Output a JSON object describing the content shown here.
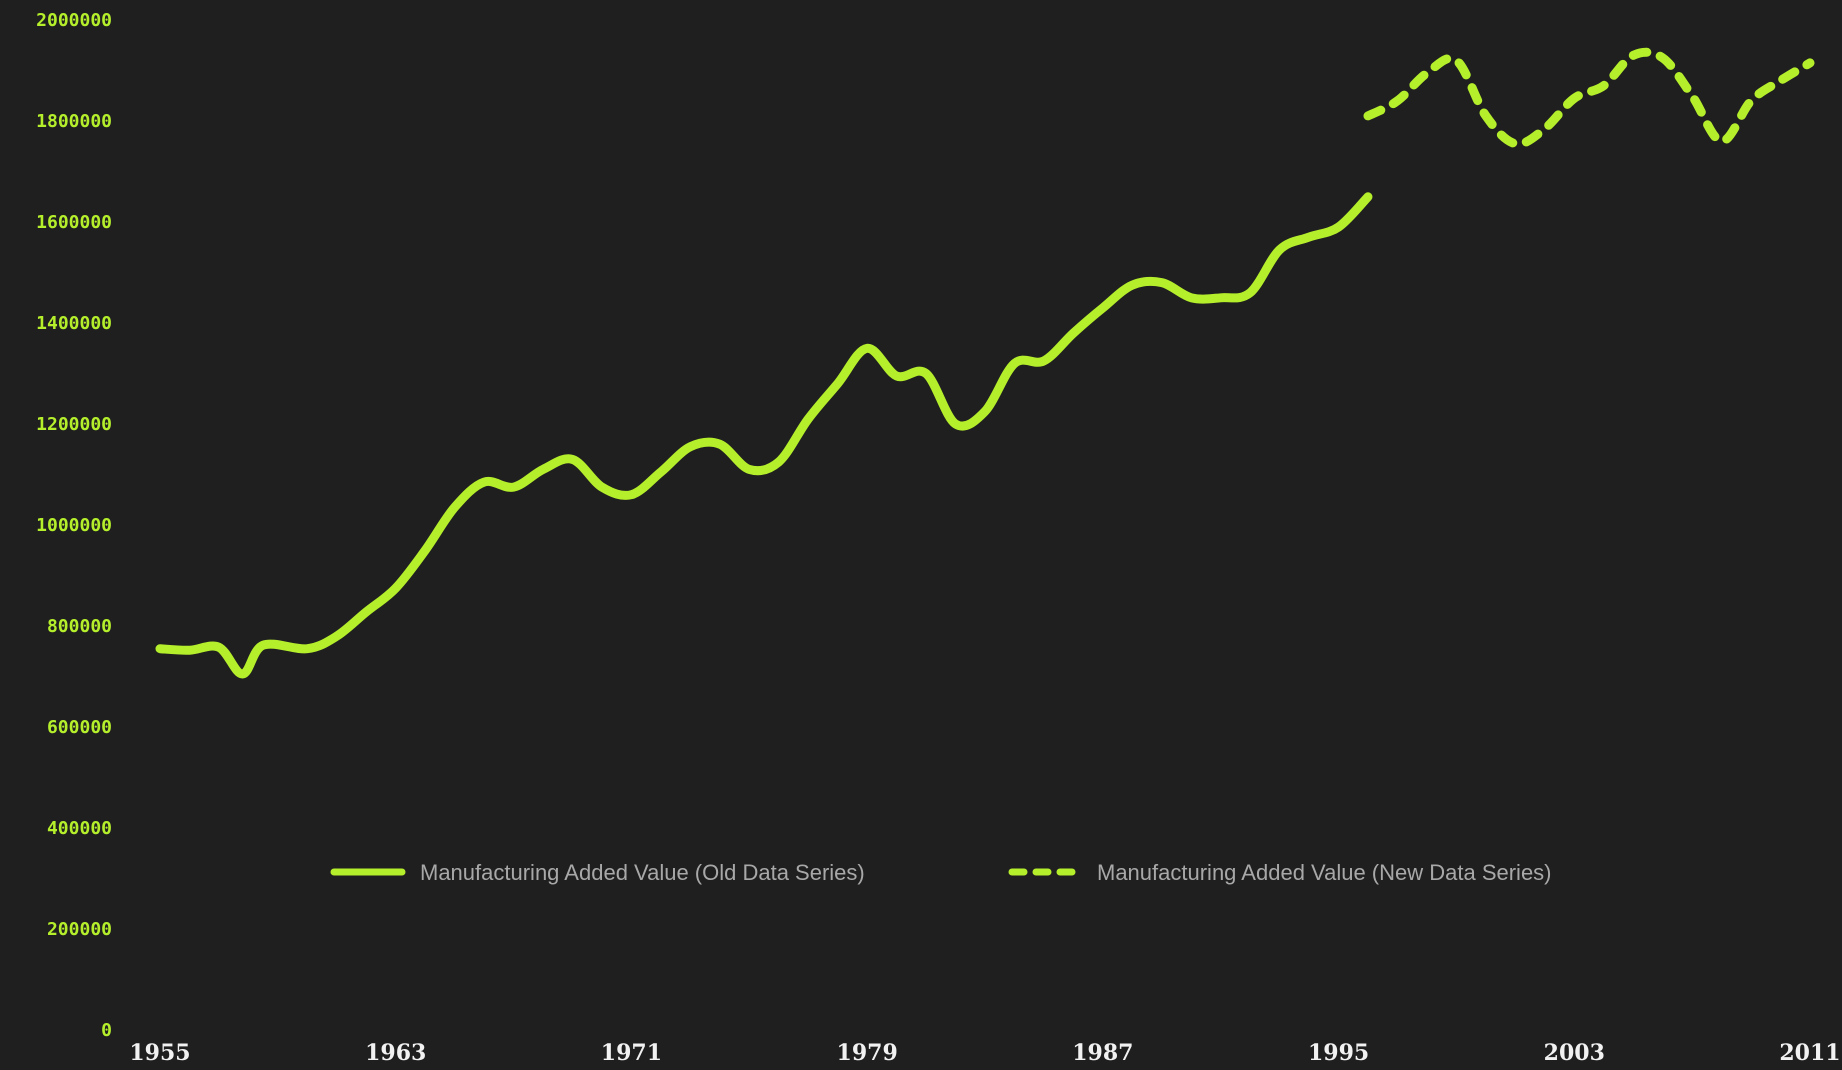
{
  "chart_data": {
    "type": "line",
    "title": "",
    "xlabel": "",
    "ylabel": "",
    "xlim": [
      1955,
      2011
    ],
    "ylim": [
      0,
      2000000
    ],
    "grid": false,
    "legend_position": "bottom-center",
    "colors": {
      "background": "#1f1f1f",
      "series": "#b5ef2c",
      "ytick": "#b5ef2c",
      "xtick": "#f2f2f2",
      "legend_text": "#a8a8a8"
    },
    "x_ticks": [
      "1955",
      "1963",
      "1971",
      "1979",
      "1987",
      "1995",
      "2003",
      "2011"
    ],
    "y_ticks": [
      "0",
      "200000",
      "400000",
      "600000",
      "800000",
      "1000000",
      "1200000",
      "1400000",
      "1600000",
      "1800000",
      "2000000"
    ],
    "series": [
      {
        "name": "Manufacturing Added Value (Old Data Series)",
        "style": "solid",
        "x": [
          1955,
          1956,
          1957,
          1957.8,
          1958.5,
          1960,
          1961,
          1962,
          1963,
          1964,
          1965,
          1966,
          1967,
          1968,
          1969,
          1970,
          1971,
          1972,
          1973,
          1974,
          1975,
          1976,
          1977,
          1978,
          1979,
          1980,
          1981,
          1982,
          1983,
          1984,
          1985,
          1986,
          1987,
          1988,
          1989,
          1990,
          1991,
          1992,
          1993,
          1994,
          1995,
          1996
        ],
        "y": [
          755000,
          752000,
          758000,
          705000,
          762000,
          755000,
          780000,
          828000,
          875000,
          950000,
          1035000,
          1085000,
          1075000,
          1110000,
          1130000,
          1075000,
          1060000,
          1105000,
          1155000,
          1160000,
          1110000,
          1125000,
          1210000,
          1280000,
          1350000,
          1295000,
          1300000,
          1200000,
          1225000,
          1320000,
          1325000,
          1380000,
          1430000,
          1475000,
          1480000,
          1450000,
          1450000,
          1460000,
          1545000,
          1570000,
          1590000,
          1650000
        ]
      },
      {
        "name": "Manufacturing Added Value (New Data Series)",
        "style": "dashed",
        "x": [
          1996,
          1997,
          1998,
          1999,
          2000,
          2001,
          2002,
          2003,
          2004,
          2005,
          2006,
          2007,
          2008,
          2009,
          2010,
          2011
        ],
        "y": [
          1810000,
          1840000,
          1895000,
          1920000,
          1810000,
          1755000,
          1785000,
          1845000,
          1870000,
          1930000,
          1925000,
          1850000,
          1760000,
          1840000,
          1880000,
          1915000
        ]
      }
    ]
  }
}
